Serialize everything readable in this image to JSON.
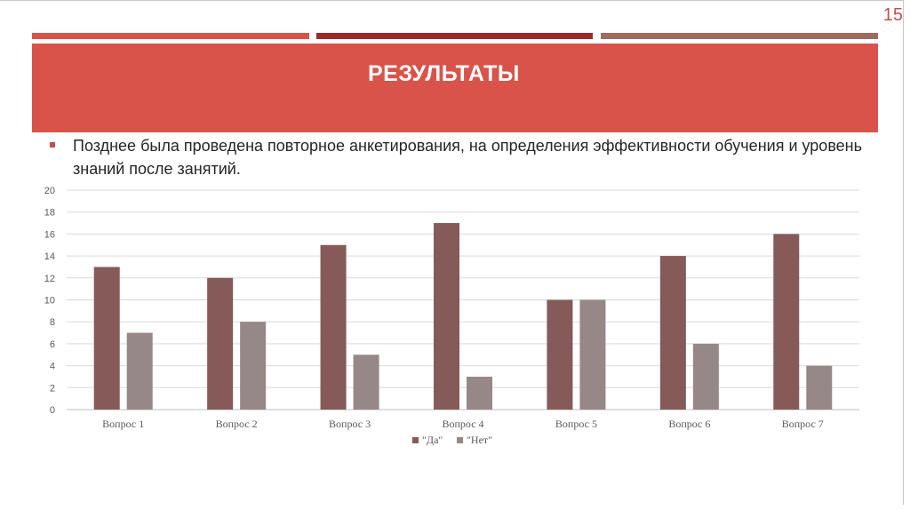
{
  "slide": {
    "page_number": "15",
    "title": "РЕЗУЛЬТАТЫ",
    "body_text": "Позднее была проведена повторное анкетирования, на определения эффективности обучения и уровень знаний после занятий."
  },
  "colors": {
    "accent": "#d9534a",
    "dark_red": "#9b2a2a",
    "brown": "#9e6b5c",
    "series_da": "#855a58",
    "series_net": "#968888"
  },
  "chart_data": {
    "type": "bar",
    "categories": [
      "Вопрос 1",
      "Вопрос 2",
      "Вопрос 3",
      "Вопрос 4",
      "Вопрос 5",
      "Вопрос 6",
      "Вопрос 7"
    ],
    "series": [
      {
        "name": "\"Да\"",
        "values": [
          13,
          12,
          15,
          17,
          10,
          14,
          16
        ],
        "color": "#855a58"
      },
      {
        "name": "\"Нет\"",
        "values": [
          7,
          8,
          5,
          3,
          10,
          6,
          4
        ],
        "color": "#968888"
      }
    ],
    "ylim": [
      0,
      20
    ],
    "yticks": [
      0,
      2,
      4,
      6,
      8,
      10,
      12,
      14,
      16,
      18,
      20
    ],
    "grid": true,
    "legend_position": "bottom"
  }
}
